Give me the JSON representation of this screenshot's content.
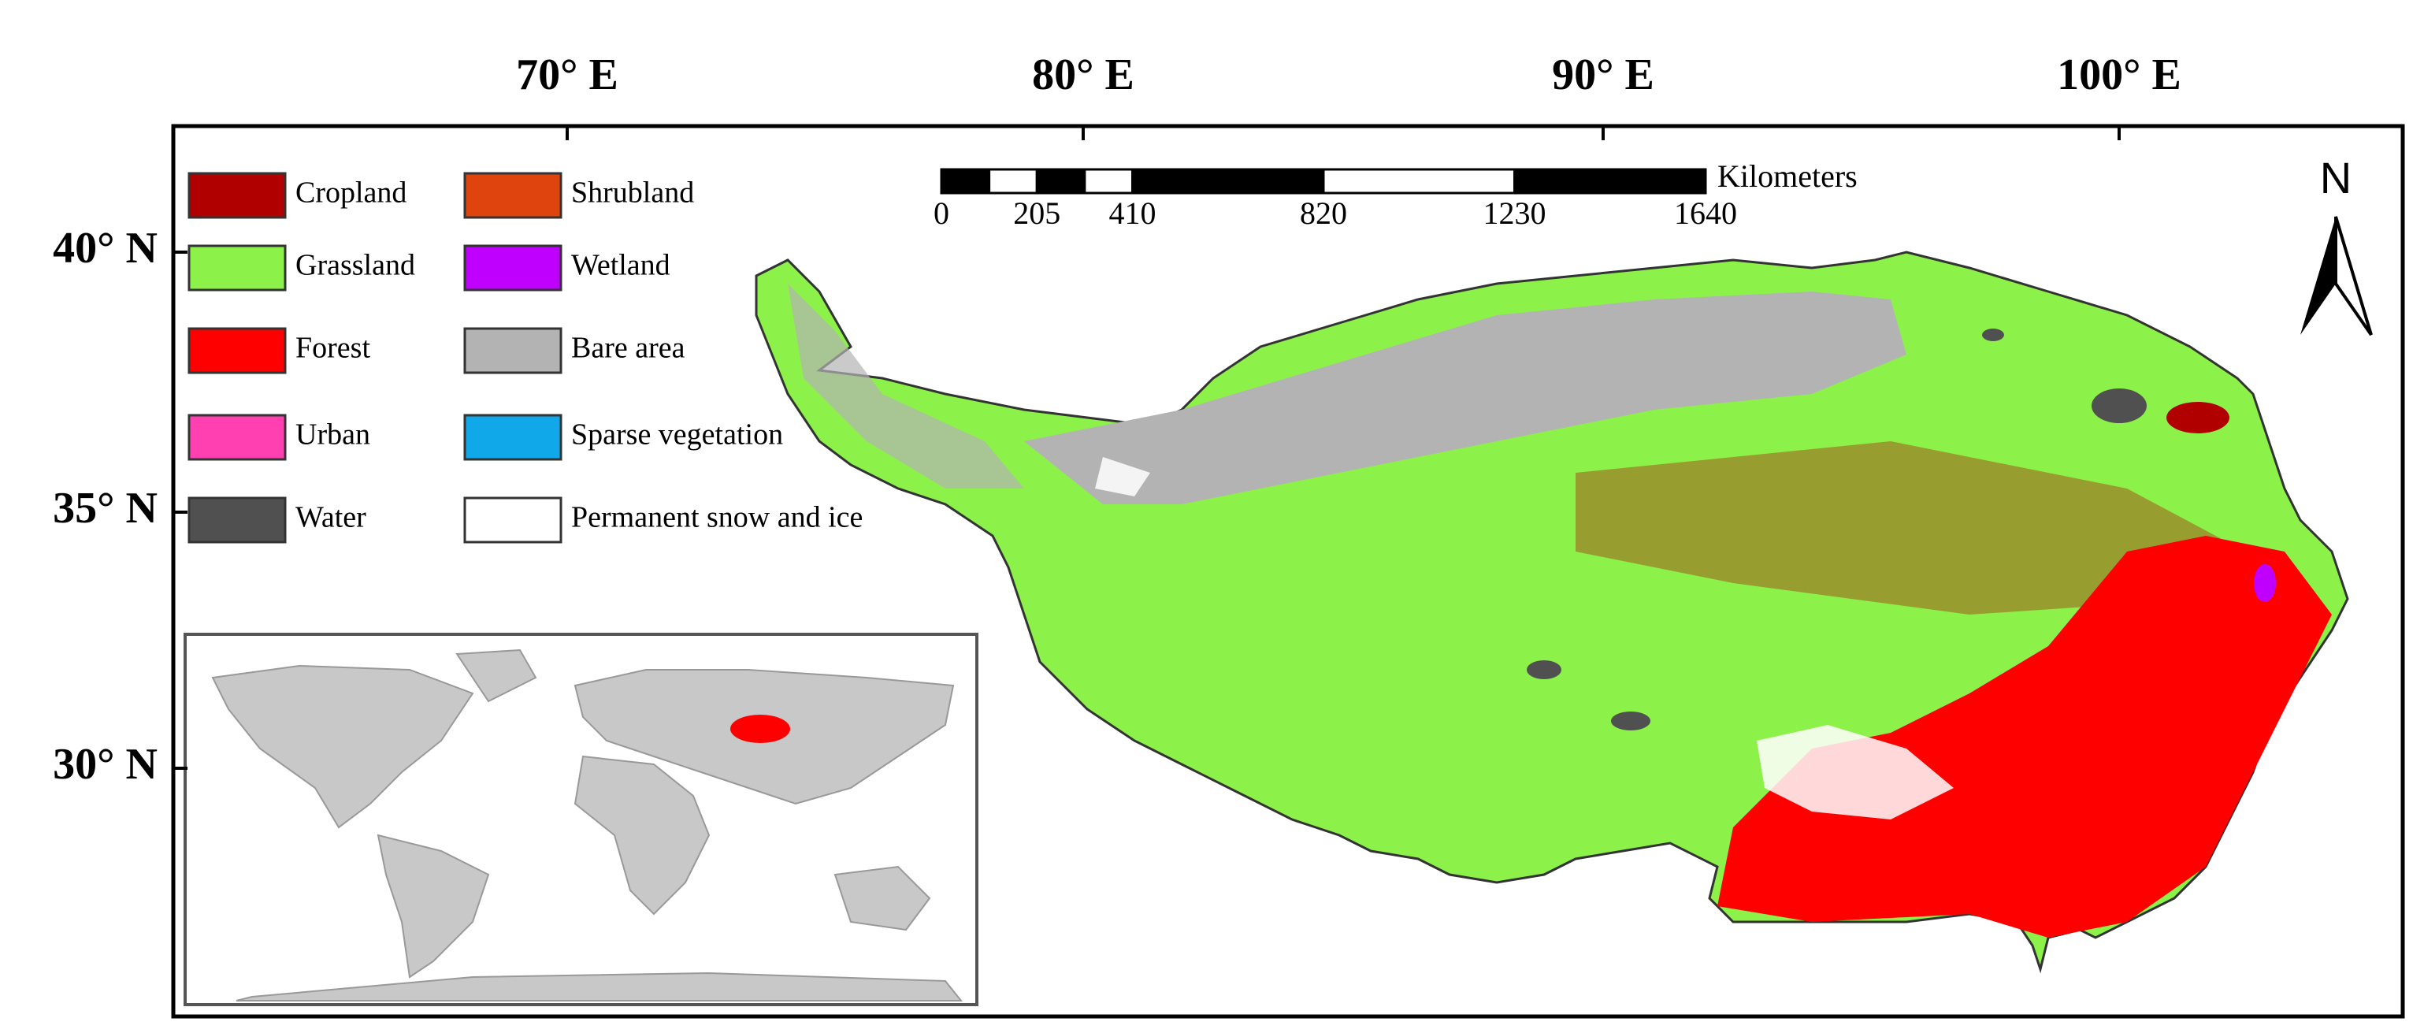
{
  "map": {
    "longitude_labels": [
      "70° E",
      "80° E",
      "90° E",
      "100° E"
    ],
    "latitude_labels": [
      "40° N",
      "35° N",
      "30° N"
    ],
    "legend": [
      {
        "label": "Cropland",
        "color": "#b00000"
      },
      {
        "label": "Shrubland",
        "color": "#e0440e"
      },
      {
        "label": "Grassland",
        "color": "#8cf24a"
      },
      {
        "label": "Wetland",
        "color": "#c000ff"
      },
      {
        "label": "Forest",
        "color": "#ff0000"
      },
      {
        "label": "Bare area",
        "color": "#b3b3b3"
      },
      {
        "label": "Urban",
        "color": "#ff40b0"
      },
      {
        "label": "Sparse vegetation",
        "color": "#10a8e8"
      },
      {
        "label": "Water",
        "color": "#505050"
      },
      {
        "label": "Permanent snow and ice",
        "color": "#ffffff"
      }
    ],
    "scale_bar": {
      "unit": "Kilometers",
      "ticks": [
        0,
        205,
        410,
        820,
        1230,
        1640
      ]
    },
    "north": "N"
  }
}
